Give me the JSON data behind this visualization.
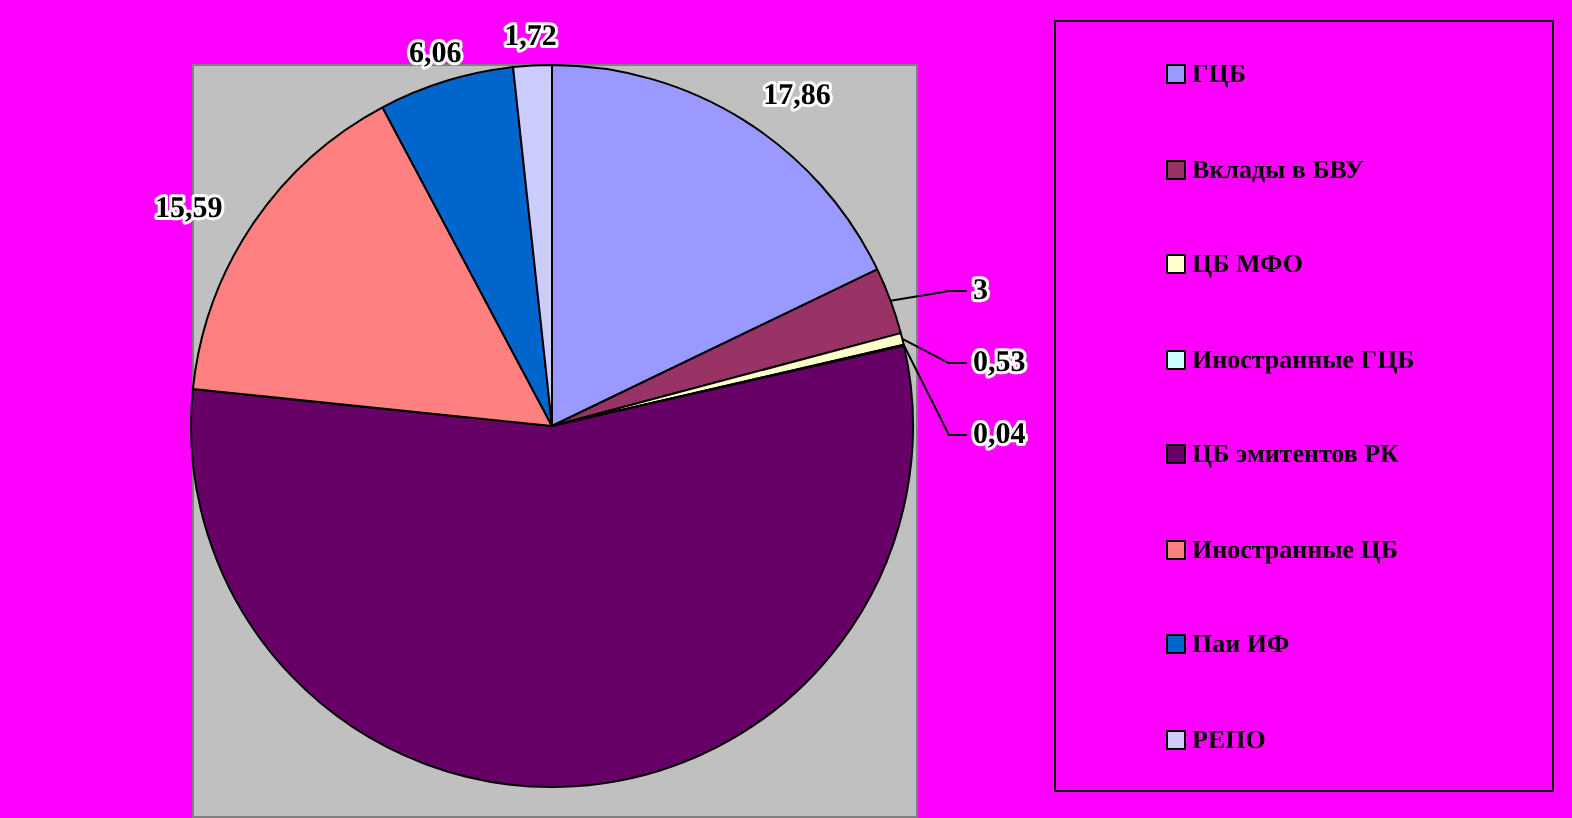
{
  "chart_data": {
    "type": "pie",
    "categories": [
      "ГЦБ",
      "Вклады в БВУ",
      "ЦБ МФО",
      "Иностранные ГЦБ",
      "ЦБ эмитентов РК",
      "Иностранные ЦБ",
      "Паи ИФ",
      "РЕПО"
    ],
    "values": [
      17.86,
      3,
      0.53,
      0.04,
      55.2,
      15.59,
      6.06,
      1.72
    ],
    "colors": [
      "#9999ff",
      "#993366",
      "#ffffcc",
      "#ccffff",
      "#660066",
      "#ff8080",
      "#0066cc",
      "#ccccff"
    ],
    "value_labels": [
      "17,86",
      "3",
      "0,53",
      "0,04",
      null,
      "15,59",
      "6,06",
      "1,72"
    ],
    "legend": "right"
  }
}
